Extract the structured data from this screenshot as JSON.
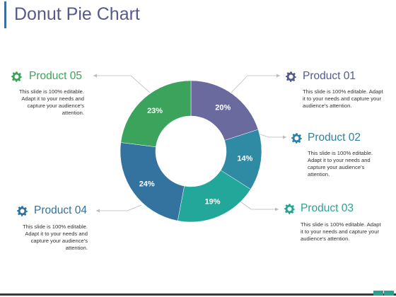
{
  "page": {
    "title": "Donut Pie Chart"
  },
  "colors": {
    "title": "#555a8a",
    "product_01": "#6a6a9e",
    "product_02": "#2f8aa3",
    "product_03": "#22a79a",
    "product_04": "#34739f",
    "product_05": "#3ba35b",
    "heading_01": "#555a8a",
    "heading_02": "#2f7fa0",
    "heading_03": "#2aa192",
    "heading_04": "#35709c",
    "heading_05": "#3ba35b"
  },
  "chart_data": {
    "type": "pie",
    "variant": "donut",
    "categories": [
      "Product 01",
      "Product 02",
      "Product 03",
      "Product 04",
      "Product 05"
    ],
    "values": [
      20,
      14,
      19,
      24,
      23
    ],
    "unit": "%",
    "value_labels": [
      "20%",
      "14%",
      "19%",
      "24%",
      "23%"
    ]
  },
  "products": [
    {
      "name": "Product 01",
      "desc": [
        "This slide is 100% editable. Adapt",
        "it to your needs and capture your",
        "audience's attention."
      ]
    },
    {
      "name": "Product 02",
      "desc": [
        "This slide is 100% editable.",
        "Adapt it to your needs and",
        "capture your audience's",
        "attention."
      ]
    },
    {
      "name": "Product 03",
      "desc": [
        "This slide is 100% editable. Adapt",
        "it to your needs and capture your",
        "audience's attention."
      ]
    },
    {
      "name": "Product 04",
      "desc": [
        "This slide is 100% editable.",
        "Adapt it to your needs and",
        "capture your audience's",
        "attention."
      ]
    },
    {
      "name": "Product 05",
      "desc": [
        "This slide is 100% editable.",
        "Adapt it to your needs and",
        "capture your audience's",
        "attention."
      ]
    }
  ],
  "icons": {
    "product_icon": "gear-icon"
  }
}
